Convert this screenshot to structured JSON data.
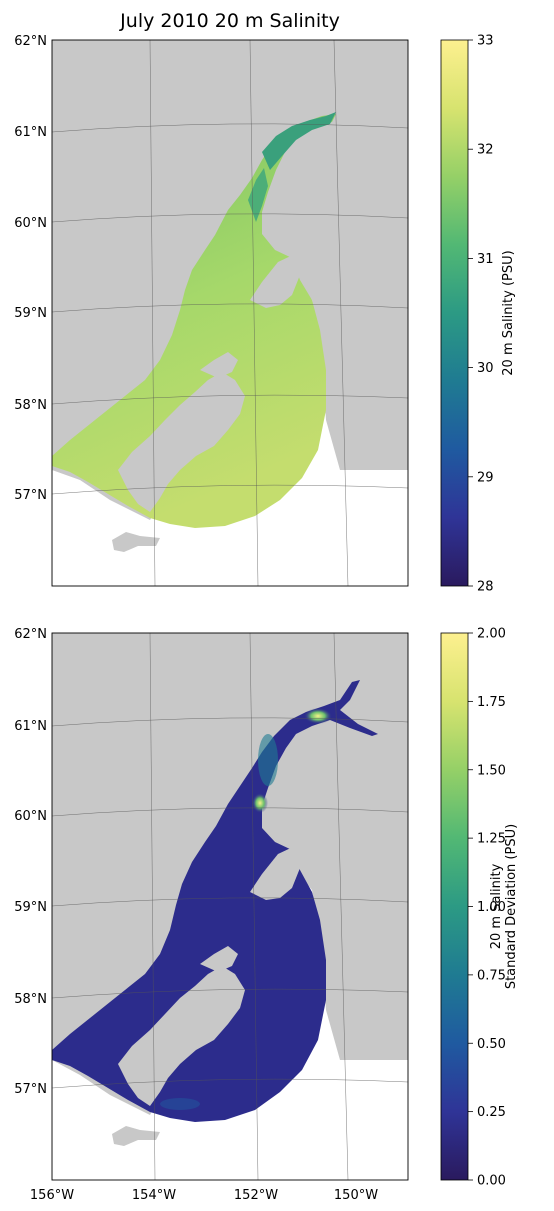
{
  "title": "July 2010 20 m Salinity",
  "latitude_labels": [
    "62°N",
    "61°N",
    "60°N",
    "59°N",
    "58°N",
    "57°N"
  ],
  "longitude_labels": [
    "156°W",
    "154°W",
    "152°W",
    "150°W"
  ],
  "panels": [
    {
      "name": "salinity",
      "colorbar": {
        "label": "20 m Salinity (PSU)",
        "label_lines": [
          "20 m Salinity (PSU)"
        ],
        "min": 28,
        "max": 33,
        "ticks": [
          "28",
          "29",
          "30",
          "31",
          "32",
          "33"
        ]
      }
    },
    {
      "name": "std-dev",
      "colorbar": {
        "label": "20 m Salinity Standard Deviation (PSU)",
        "label_lines": [
          "20 m Salinity",
          "Standard Deviation (PSU)"
        ],
        "min": 0,
        "max": 2,
        "ticks": [
          "0.00",
          "0.25",
          "0.50",
          "0.75",
          "1.00",
          "1.25",
          "1.50",
          "1.75",
          "2.00"
        ]
      }
    }
  ],
  "colors": {
    "land": "#c8c8c8",
    "salinity_water": "#a6d86a",
    "salinity_water_south": "#c4dd6e",
    "salinity_inlet": "#3aa07c",
    "stddev_water": "#2c2c8c",
    "stddev_hot": "#f4f28a",
    "colormap": [
      "#2a1a5e",
      "#2f3497",
      "#1f5aa0",
      "#1f7b92",
      "#2c9a84",
      "#52b874",
      "#95d067",
      "#d7e36f",
      "#fdf08f"
    ]
  }
}
